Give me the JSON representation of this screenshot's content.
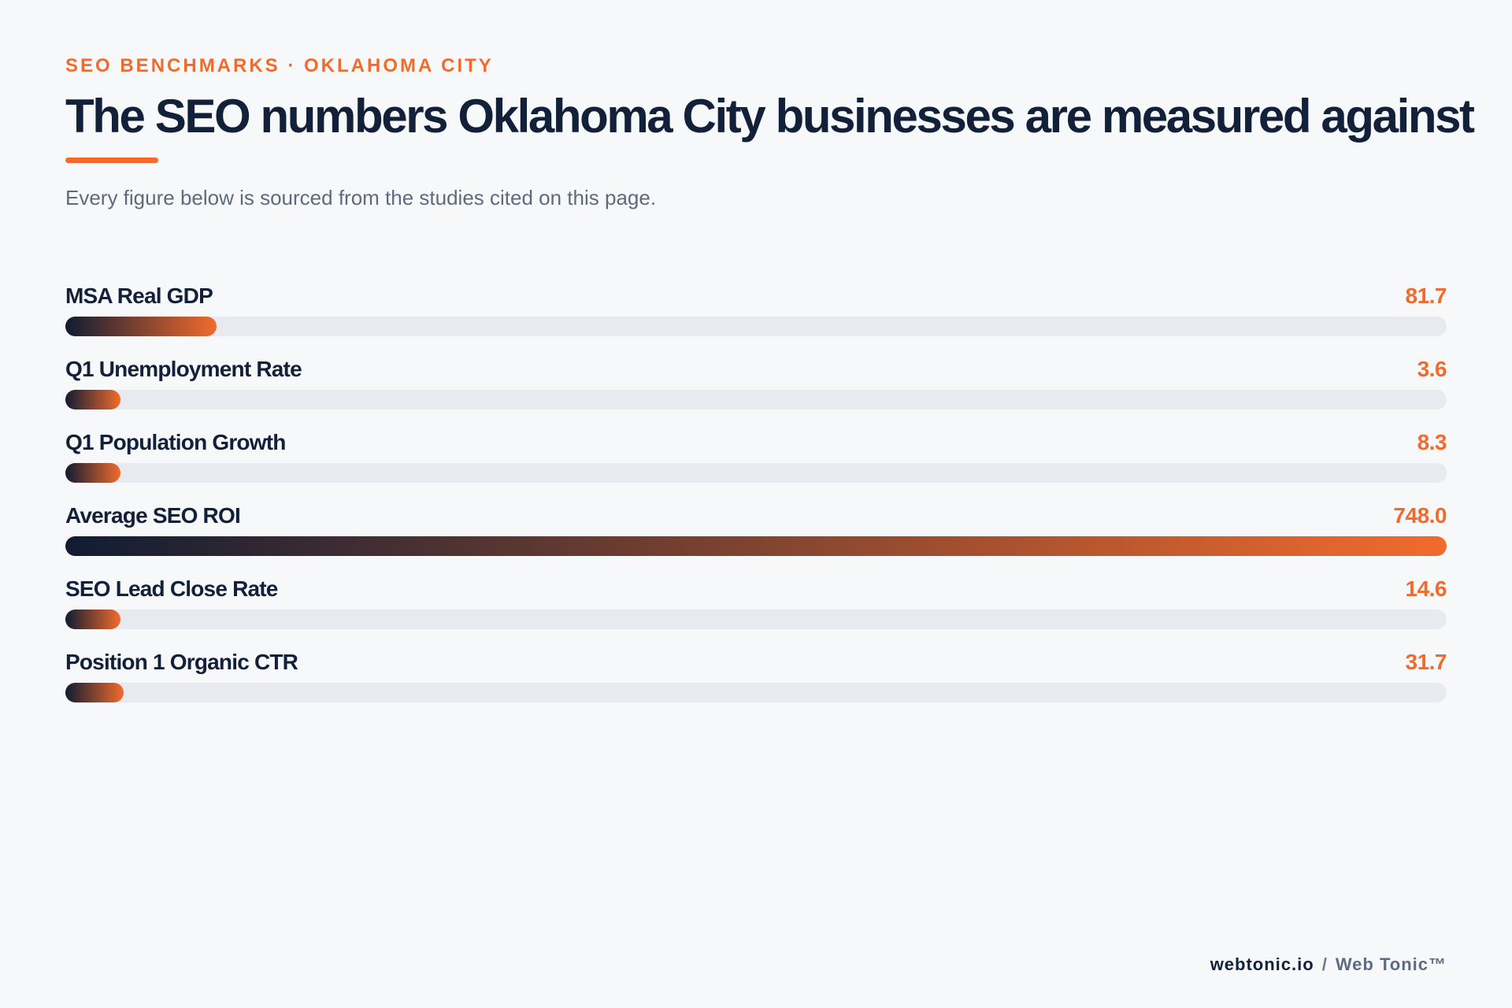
{
  "header": {
    "eyebrow": "SEO BENCHMARKS · OKLAHOMA CITY",
    "title": "The SEO numbers Oklahoma City businesses are measured against",
    "subtitle": "Every figure below is sourced from the studies cited on this page."
  },
  "chart_data": {
    "type": "bar",
    "orientation": "horizontal",
    "categories": [
      "MSA Real GDP",
      "Q1 Unemployment Rate",
      "Q1 Population Growth",
      "Average SEO ROI",
      "SEO Lead Close Rate",
      "Position 1 Organic CTR"
    ],
    "values": [
      81.7,
      3.6,
      8.3,
      748.0,
      14.6,
      31.7
    ],
    "value_labels": [
      "81.7",
      "3.6",
      "8.3",
      "748.0",
      "14.6",
      "31.7"
    ],
    "xlim": [
      0,
      748.0
    ],
    "min_visible_fill": 0.04,
    "grid": false,
    "colors": {
      "bar_start": "#101c33",
      "bar_end": "#f26b2d",
      "track": "#e8eaef",
      "value_text": "#f26b2d",
      "accent": "#f26b2d"
    }
  },
  "footer": {
    "domain": "webtonic.io",
    "separator": "/",
    "brand": "Web Tonic™"
  }
}
